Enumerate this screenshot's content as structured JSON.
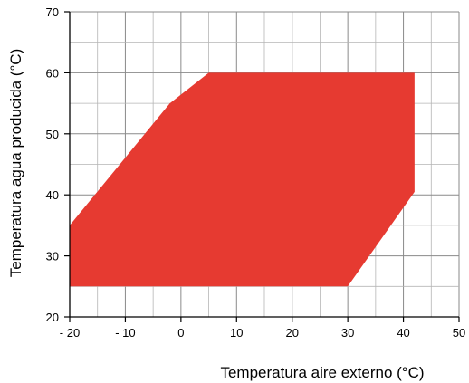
{
  "chart_data": {
    "type": "area",
    "xlabel": "Temperatura aire externo (°C)",
    "ylabel": "Temperatura agua producida (°C)",
    "xlim": [
      -20,
      50
    ],
    "ylim": [
      20,
      70
    ],
    "x_ticks": [
      -20,
      -10,
      0,
      10,
      20,
      30,
      40,
      50
    ],
    "x_tick_labels": [
      "- 20",
      "- 10",
      "0",
      "10",
      "20",
      "30",
      "40",
      "50"
    ],
    "y_ticks": [
      20,
      30,
      40,
      50,
      60,
      70
    ],
    "y_tick_labels": [
      "20",
      "30",
      "40",
      "50",
      "60",
      "70"
    ],
    "minor_grid_x_step": 5,
    "minor_grid_y_step": 5,
    "grid": true,
    "region": {
      "color": "#e63a31",
      "points": [
        {
          "x": -20,
          "y": 25
        },
        {
          "x": 30,
          "y": 25
        },
        {
          "x": 42,
          "y": 40.5
        },
        {
          "x": 42,
          "y": 60
        },
        {
          "x": 5,
          "y": 60
        },
        {
          "x": -2,
          "y": 55
        },
        {
          "x": -20,
          "y": 35
        }
      ]
    }
  }
}
